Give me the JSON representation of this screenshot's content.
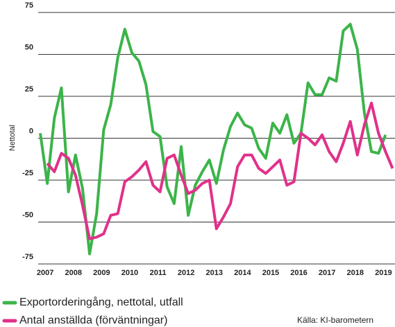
{
  "chart_data": {
    "type": "line",
    "y_label": "Nettotal",
    "categories": [
      null,
      "2007",
      null,
      null,
      null,
      "2008",
      null,
      null,
      null,
      "2009",
      null,
      null,
      null,
      "2010",
      null,
      null,
      null,
      "2011",
      null,
      null,
      null,
      "2012",
      null,
      null,
      null,
      "2013",
      null,
      null,
      null,
      "2014",
      null,
      null,
      null,
      "2015",
      null,
      null,
      null,
      "2016",
      null,
      null,
      null,
      "2017",
      null,
      null,
      null,
      "2018",
      null,
      null,
      null,
      "2019",
      null
    ],
    "series": [
      {
        "name": "Exportorderingång, nettotal, utfall",
        "color": "#3cb44a",
        "values": [
          3,
          -27,
          12,
          30,
          -32,
          -10,
          -30,
          -69,
          -45,
          5,
          20,
          48,
          65,
          51,
          46,
          32,
          4,
          1,
          -29,
          -39,
          -5,
          -46,
          -28,
          -20,
          -13,
          -27,
          -7,
          7,
          15,
          8,
          6,
          -6,
          -12,
          9,
          3,
          14,
          -3,
          3,
          33,
          26,
          26,
          36,
          34,
          64,
          68,
          53,
          15,
          -8,
          -9,
          2,
          null
        ]
      },
      {
        "name": "Antal anställda (förväntningar)",
        "color": "#e0318a",
        "values": [
          null,
          -15,
          -20,
          -9,
          -12,
          -22,
          -40,
          -60,
          -59,
          -57,
          -46,
          -45,
          -26,
          -23,
          -19,
          -14,
          -28,
          -32,
          -12,
          -10,
          -22,
          -33,
          -31,
          -27,
          -25,
          -54,
          -47,
          -39,
          -17,
          -10,
          -10,
          -18,
          -21,
          -17,
          -13,
          -28,
          -26,
          3,
          0,
          -4,
          2,
          -8,
          -14,
          -3,
          10,
          -10,
          8,
          21,
          3,
          -8,
          -18
        ]
      }
    ],
    "ylim": [
      -75,
      75
    ],
    "yticks": [
      -75,
      -50,
      -25,
      0,
      25,
      50,
      75
    ],
    "grid": true,
    "source": "Källa: KI-barometern"
  }
}
